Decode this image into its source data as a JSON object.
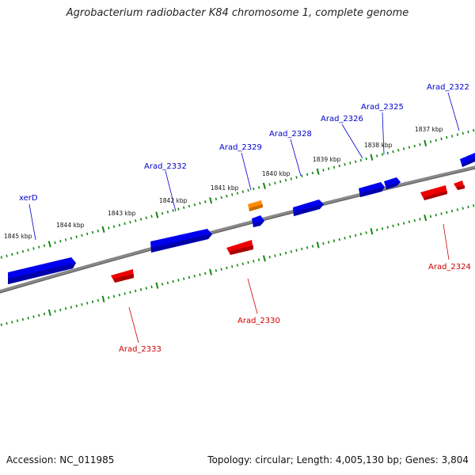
{
  "title": "Agrobacterium radiobacter K84 chromosome 1, complete genome",
  "footer": {
    "accession_label": "Accession:",
    "accession": "NC_011985",
    "topology_label": "Topology:",
    "topology": "circular",
    "length_label": "Length:",
    "length": "4,005,130 bp",
    "genes_label": "Genes:",
    "genes": "3,804"
  },
  "colors": {
    "forward_strand": "#0000ee",
    "reverse_strand": "#ee0000",
    "rna": "#ff8c00",
    "backbone": "#808080",
    "ruler": "#118811"
  },
  "ruler_labels": [
    "1845 kbp",
    "1844 kbp",
    "1843 kbp",
    "1842 kbp",
    "1841 kbp",
    "1840 kbp",
    "1839 kbp",
    "1838 kbp",
    "1837 kbp"
  ],
  "gene_labels": {
    "forward": [
      "xerD",
      "Arad_2332",
      "Arad_2329",
      "Arad_2328",
      "Arad_2326",
      "Arad_2325",
      "Arad_2322"
    ],
    "reverse": [
      "Arad_2333",
      "Arad_2330",
      "Arad_2324"
    ]
  }
}
